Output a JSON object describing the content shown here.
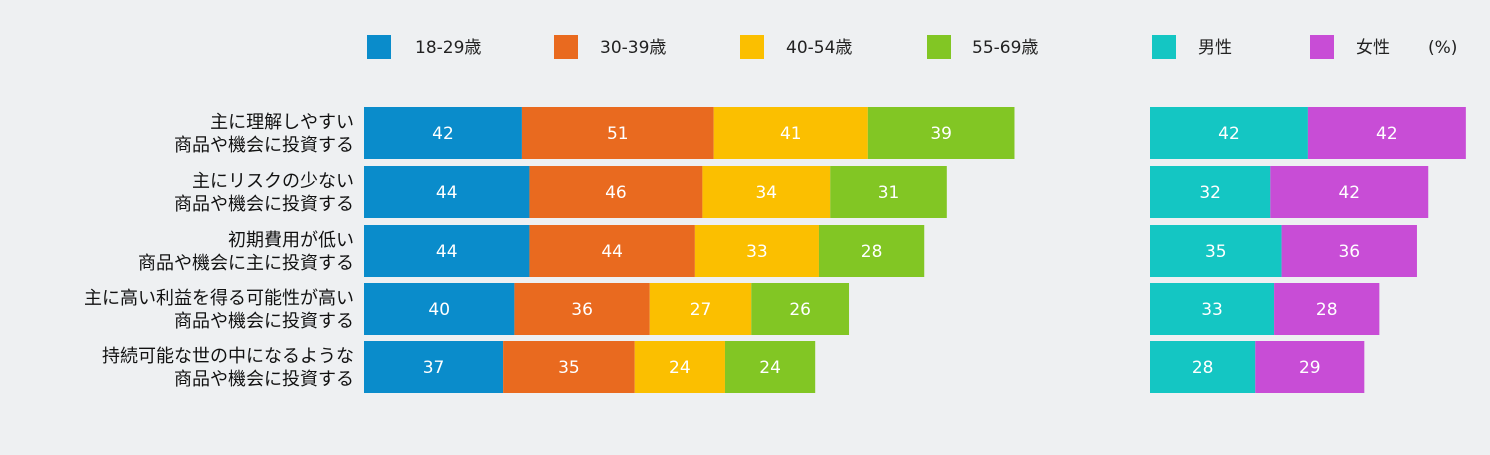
{
  "chart_data": {
    "type": "bar",
    "stacked": true,
    "orientation": "horizontal",
    "unit_label": "(%)",
    "categories": [
      [
        "主に理解しやすい",
        "商品や機会に投資する"
      ],
      [
        "主にリスクの少ない",
        "商品や機会に投資する"
      ],
      [
        "初期費用が低い",
        "商品や機会に主に投資する"
      ],
      [
        "主に高い利益を得る可能性が高い",
        "商品や機会に投資する"
      ],
      [
        "持続可能な世の中になるような",
        "商品や機会に投資する"
      ]
    ],
    "groups": [
      {
        "series": [
          {
            "name": "18-29歳",
            "color": "#0a8ccb",
            "values": [
              42,
              44,
              44,
              40,
              37
            ]
          },
          {
            "name": "30-39歳",
            "color": "#e96a1f",
            "values": [
              51,
              46,
              44,
              36,
              35
            ]
          },
          {
            "name": "40-54歳",
            "color": "#fbbf00",
            "values": [
              41,
              34,
              33,
              27,
              24
            ]
          },
          {
            "name": "55-69歳",
            "color": "#82c624",
            "values": [
              39,
              31,
              28,
              26,
              24
            ]
          }
        ]
      },
      {
        "series": [
          {
            "name": "男性",
            "color": "#14c6c3",
            "values": [
              42,
              32,
              35,
              33,
              28
            ]
          },
          {
            "name": "女性",
            "color": "#c84dd6",
            "values": [
              42,
              42,
              36,
              28,
              29
            ]
          }
        ]
      }
    ],
    "grid": false,
    "legend_position": "top"
  }
}
